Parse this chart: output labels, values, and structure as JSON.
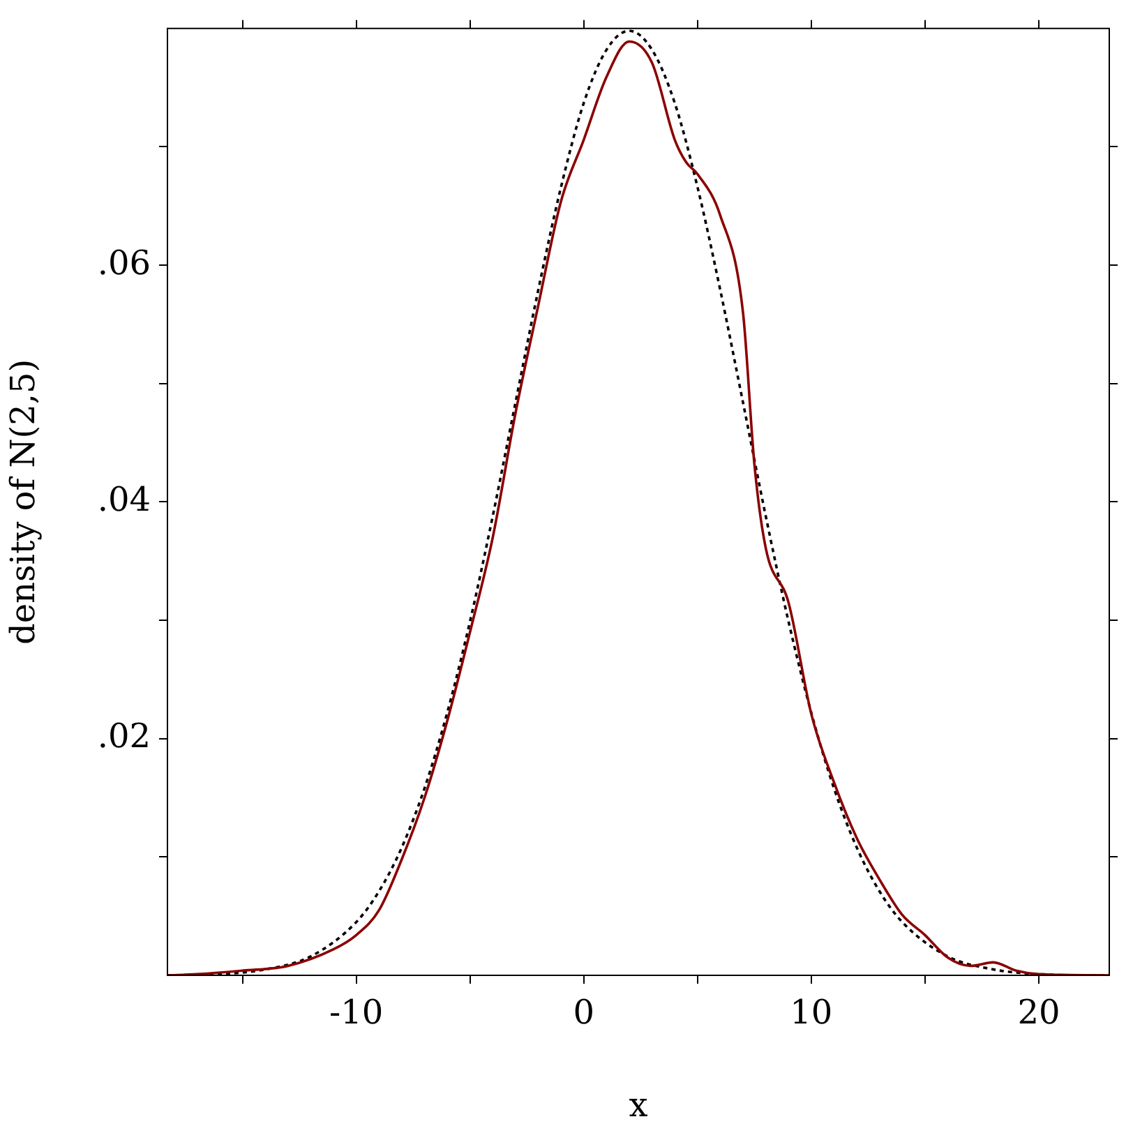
{
  "chart_data": {
    "type": "line",
    "xlabel": "x",
    "ylabel": "density of N(2,5)",
    "xlim": [
      -18.3,
      23.1
    ],
    "ylim": [
      0,
      0.08
    ],
    "xticks": [
      {
        "value": -15,
        "label": null
      },
      {
        "value": -10,
        "label": "-10"
      },
      {
        "value": -5,
        "label": null
      },
      {
        "value": 0,
        "label": "0"
      },
      {
        "value": 5,
        "label": null
      },
      {
        "value": 10,
        "label": "10"
      },
      {
        "value": 15,
        "label": null
      },
      {
        "value": 20,
        "label": "20"
      }
    ],
    "yticks": [
      {
        "value": 0.01,
        "label": null
      },
      {
        "value": 0.02,
        "label": ".02"
      },
      {
        "value": 0.03,
        "label": null
      },
      {
        "value": 0.04,
        "label": ".04"
      },
      {
        "value": 0.05,
        "label": null
      },
      {
        "value": 0.06,
        "label": ".06"
      },
      {
        "value": 0.07,
        "label": null
      }
    ],
    "grid": false,
    "legend": false,
    "marker": "none",
    "series": [
      {
        "color": "#000000",
        "line_style": "dotted",
        "x": [
          -18.3,
          -16,
          -14,
          -12,
          -10,
          -9,
          -8,
          -7,
          -6,
          -5,
          -4,
          -3,
          -2,
          -1,
          0,
          1,
          2,
          3,
          4,
          5,
          6,
          7,
          8,
          9,
          10,
          11,
          12,
          13,
          14,
          16,
          18,
          20,
          22,
          23.1
        ],
        "values": [
          0.0,
          0.0001,
          0.0005,
          0.0016,
          0.0045,
          0.0071,
          0.0108,
          0.0158,
          0.0222,
          0.0299,
          0.0388,
          0.0484,
          0.0579,
          0.0666,
          0.0737,
          0.0782,
          0.0798,
          0.0782,
          0.0737,
          0.0666,
          0.0579,
          0.0484,
          0.0388,
          0.0299,
          0.0222,
          0.0158,
          0.0108,
          0.0071,
          0.0045,
          0.0016,
          0.0005,
          0.0001,
          0.0,
          0.0
        ]
      },
      {
        "color": "#8b0000",
        "line_style": "solid",
        "x": [
          -18.3,
          -17,
          -15,
          -13,
          -11,
          -10,
          -9,
          -8,
          -7,
          -6,
          -5,
          -4,
          -3,
          -2,
          -1,
          0,
          1,
          2,
          3,
          4,
          4.5,
          5,
          6,
          7,
          7.5,
          8,
          9,
          10,
          11,
          12,
          13,
          14,
          15,
          16,
          17,
          18,
          19,
          20,
          23.1
        ],
        "values": [
          0.0,
          0.0001,
          0.0004,
          0.0008,
          0.0022,
          0.0034,
          0.0055,
          0.0098,
          0.015,
          0.0215,
          0.029,
          0.037,
          0.0475,
          0.0566,
          0.0654,
          0.0706,
          0.0759,
          0.0789,
          0.0771,
          0.0706,
          0.0687,
          0.0677,
          0.0642,
          0.056,
          0.0432,
          0.0361,
          0.0315,
          0.0221,
          0.0163,
          0.0116,
          0.0081,
          0.0051,
          0.0034,
          0.0015,
          0.0008,
          0.0011,
          0.0004,
          0.0001,
          0.0
        ]
      }
    ]
  }
}
